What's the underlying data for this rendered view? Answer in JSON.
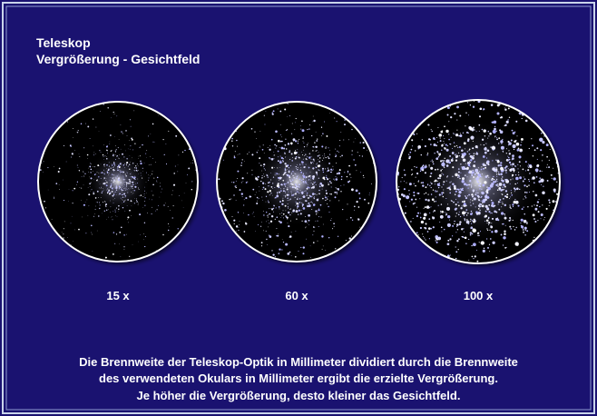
{
  "header": {
    "title_lines": [
      "Teleskop",
      "Vergrößerung - Gesichtfeld"
    ]
  },
  "panels": [
    {
      "label": "15 x"
    },
    {
      "label": "60 x"
    },
    {
      "label": "100 x"
    }
  ],
  "caption": {
    "lines": [
      "Die Brennweite der Teleskop-Optik in Millimeter dividiert durch die Brennweite",
      "des verwendeten Okulars in Millimeter ergibt die erzielte Vergrößerung.",
      "Je höher die Vergrößerung, desto kleiner das Gesichtfeld."
    ]
  }
}
